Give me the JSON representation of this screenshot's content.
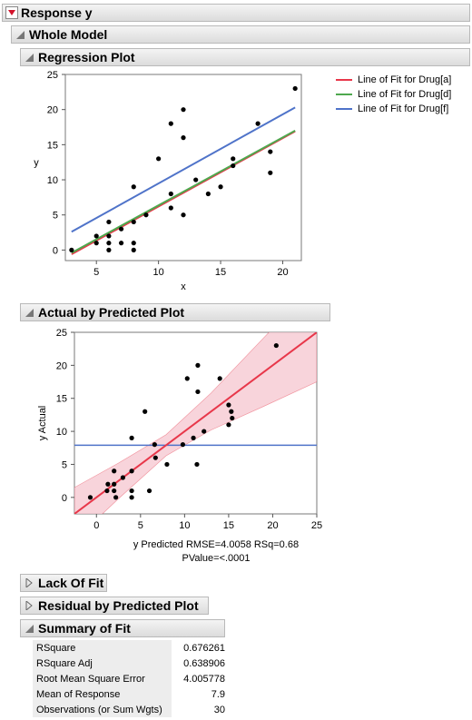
{
  "response_header": {
    "title": "Response y"
  },
  "whole_model": {
    "title": "Whole Model"
  },
  "regression_plot": {
    "title": "Regression Plot"
  },
  "actual_by_predicted": {
    "title": "Actual by Predicted Plot",
    "caption_line1": "y Predicted RMSE=4.0058 RSq=0.68",
    "caption_line2": "PValue=<.0001"
  },
  "lack_of_fit": {
    "title": "Lack Of Fit"
  },
  "residual_by_predicted": {
    "title": "Residual by Predicted Plot"
  },
  "summary_of_fit": {
    "title": "Summary of Fit",
    "rows": [
      {
        "label": "RSquare",
        "value": "0.676261"
      },
      {
        "label": "RSquare Adj",
        "value": "0.638906"
      },
      {
        "label": "Root Mean Square Error",
        "value": "4.005778"
      },
      {
        "label": "Mean of Response",
        "value": "7.9"
      },
      {
        "label": "Observations (or Sum Wgts)",
        "value": "30"
      }
    ]
  },
  "colors": {
    "drug_a": "#e8374a",
    "drug_d": "#4ea84e",
    "drug_f": "#4f73c9",
    "band": "#f6c6cf"
  },
  "chart_data": [
    {
      "type": "scatter",
      "title": "",
      "xlabel": "x",
      "ylabel": "y",
      "xlim": [
        2.5,
        21.5
      ],
      "ylim": [
        -1.5,
        25
      ],
      "xticks": [
        5,
        10,
        15,
        20
      ],
      "yticks": [
        0,
        5,
        10,
        15,
        20,
        25
      ],
      "points": [
        [
          3,
          0
        ],
        [
          5,
          1
        ],
        [
          5,
          2
        ],
        [
          6,
          0
        ],
        [
          6,
          1
        ],
        [
          6,
          2
        ],
        [
          6,
          4
        ],
        [
          7,
          1
        ],
        [
          7,
          3
        ],
        [
          8,
          0
        ],
        [
          8,
          1
        ],
        [
          8,
          4
        ],
        [
          8,
          9
        ],
        [
          9,
          5
        ],
        [
          10,
          13
        ],
        [
          11,
          6
        ],
        [
          11,
          8
        ],
        [
          11,
          18
        ],
        [
          12,
          5
        ],
        [
          12,
          16
        ],
        [
          12,
          20
        ],
        [
          13,
          10
        ],
        [
          14,
          8
        ],
        [
          15,
          9
        ],
        [
          16,
          12
        ],
        [
          16,
          13
        ],
        [
          18,
          18
        ],
        [
          19,
          11
        ],
        [
          19,
          14
        ],
        [
          21,
          23
        ]
      ],
      "series": [
        {
          "name": "Line of Fit for Drug[a]",
          "x": [
            3,
            21
          ],
          "y": [
            -0.6,
            16.9
          ]
        },
        {
          "name": "Line of Fit for Drug[d]",
          "x": [
            3,
            21
          ],
          "y": [
            -0.4,
            17.0
          ]
        },
        {
          "name": "Line of Fit for Drug[f]",
          "x": [
            3,
            21
          ],
          "y": [
            2.6,
            20.3
          ]
        }
      ],
      "legend_position": "top-right"
    },
    {
      "type": "scatter",
      "title": "",
      "xlabel": "",
      "ylabel": "y Actual",
      "xlim": [
        -2.5,
        25
      ],
      "ylim": [
        -2.5,
        25
      ],
      "xticks": [
        0,
        5,
        10,
        15,
        20,
        25
      ],
      "yticks": [
        0,
        5,
        10,
        15,
        20,
        25
      ],
      "points": [
        [
          -0.7,
          0
        ],
        [
          1.2,
          1
        ],
        [
          1.3,
          2
        ],
        [
          2,
          1
        ],
        [
          2,
          2
        ],
        [
          2,
          4
        ],
        [
          2.2,
          0
        ],
        [
          3,
          3
        ],
        [
          4,
          0
        ],
        [
          4,
          1
        ],
        [
          4,
          4
        ],
        [
          4,
          9
        ],
        [
          5.5,
          13
        ],
        [
          6,
          1
        ],
        [
          6.6,
          8
        ],
        [
          6.7,
          6
        ],
        [
          8,
          5
        ],
        [
          9.8,
          8
        ],
        [
          10.3,
          18
        ],
        [
          11,
          9
        ],
        [
          11.4,
          5
        ],
        [
          11.5,
          16
        ],
        [
          11.5,
          20
        ],
        [
          12.2,
          10
        ],
        [
          14,
          18
        ],
        [
          15,
          11
        ],
        [
          15,
          14
        ],
        [
          15.3,
          13
        ],
        [
          15.4,
          12
        ],
        [
          20.4,
          23
        ]
      ],
      "fit_line": {
        "x": [
          -2.5,
          25
        ],
        "y": [
          -2.5,
          25
        ]
      },
      "mean_line": 7.9,
      "confidence_band": {
        "x": [
          -2.5,
          2.5,
          7.9,
          13,
          19,
          25
        ],
        "lower": [
          -6.5,
          -0.2,
          6.3,
          10.2,
          13.8,
          17.5
        ],
        "upper": [
          1.5,
          5.2,
          9.5,
          15.8,
          24.2,
          32.5
        ]
      }
    }
  ]
}
